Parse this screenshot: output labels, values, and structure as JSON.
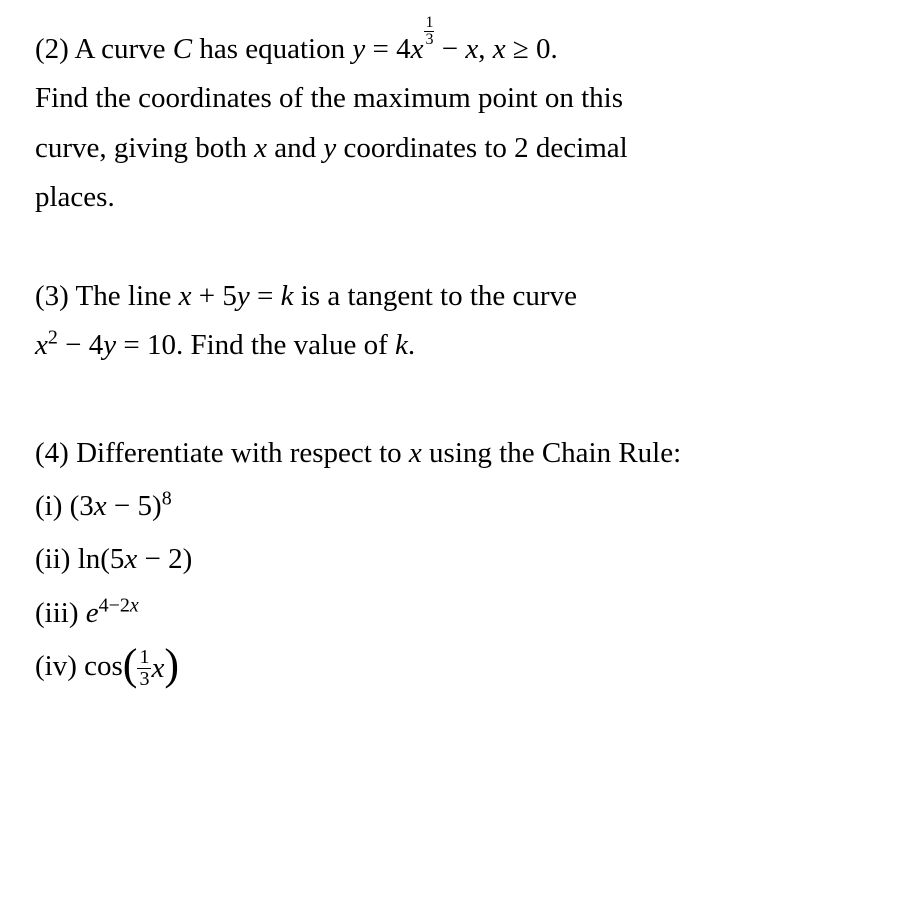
{
  "problems": {
    "p2": {
      "label": "(2)",
      "text_before_eq": "A curve ",
      "curve_name": "C",
      "text_after_c": " has equation ",
      "eq_lhs": "y",
      "eq_eq": " = ",
      "eq_coef": "4",
      "eq_var": "x",
      "eq_exp_num": "1",
      "eq_exp_den": "3",
      "eq_minus": " − ",
      "eq_var2": "x",
      "eq_comma": ", ",
      "eq_cond_var": "x",
      "eq_cond": " ≥ 0.",
      "line2": "Find the coordinates of the maximum point on this",
      "line3_a": "curve, giving both ",
      "line3_x": "x",
      "line3_and": " and ",
      "line3_y": "y",
      "line3_b": " coordinates to 2 decimal",
      "line4": "places."
    },
    "p3": {
      "label": "(3)",
      "text1": " The line ",
      "eq1_x": "x",
      "eq1_plus": " + 5",
      "eq1_y": "y",
      "eq1_eq": " = ",
      "eq1_k": "k",
      "text2": " is a tangent to the curve",
      "eq2_x": "x",
      "eq2_exp": "2",
      "eq2_minus": " − 4",
      "eq2_y": "y",
      "eq2_eq": " = 10",
      "text3": ". Find the value of ",
      "eq2_k": "k",
      "period": "."
    },
    "p4": {
      "label": "(4)",
      "intro_a": " Differentiate with respect to ",
      "intro_x": "x",
      "intro_b": " using the Chain Rule:",
      "i": {
        "label": "(i) ",
        "open": "(3",
        "x": "x",
        "close": " − 5)",
        "exp": "8"
      },
      "ii": {
        "label": "(ii) ",
        "ln": " ln(5",
        "x": "x",
        "close": " − 2)"
      },
      "iii": {
        "label": "(iii) ",
        "e": "e",
        "exp_a": "4−2",
        "exp_x": "x"
      },
      "iv": {
        "label": "(iv) ",
        "cos": " cos",
        "frac_num": "1",
        "frac_den": "3",
        "x": "x"
      }
    }
  },
  "style": {
    "font_family": "Times New Roman",
    "font_size_pt": 22,
    "text_color": "#000000",
    "background_color": "#ffffff"
  }
}
